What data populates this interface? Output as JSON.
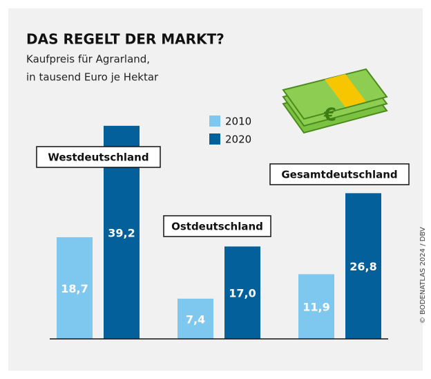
{
  "chart_data": {
    "type": "bar",
    "title": "DAS REGELT DER MARKT?",
    "subtitle": [
      "Kaufpreis für Agrarland,",
      "in tausend Euro je Hektar"
    ],
    "categories": [
      "Westdeutschland",
      "Ostdeutschland",
      "Gesamtdeutschland"
    ],
    "series": [
      {
        "name": "2010",
        "color": "#7ec8f0",
        "values": [
          18.7,
          7.4,
          11.9
        ],
        "value_labels": [
          "18,7",
          "7,4",
          "11,9"
        ]
      },
      {
        "name": "2020",
        "color": "#03609a",
        "values": [
          39.2,
          17.0,
          26.8
        ],
        "value_labels": [
          "39,2",
          "17,0",
          "26,8"
        ]
      }
    ],
    "source": "© BODENATLAS 2024 / DBV"
  }
}
